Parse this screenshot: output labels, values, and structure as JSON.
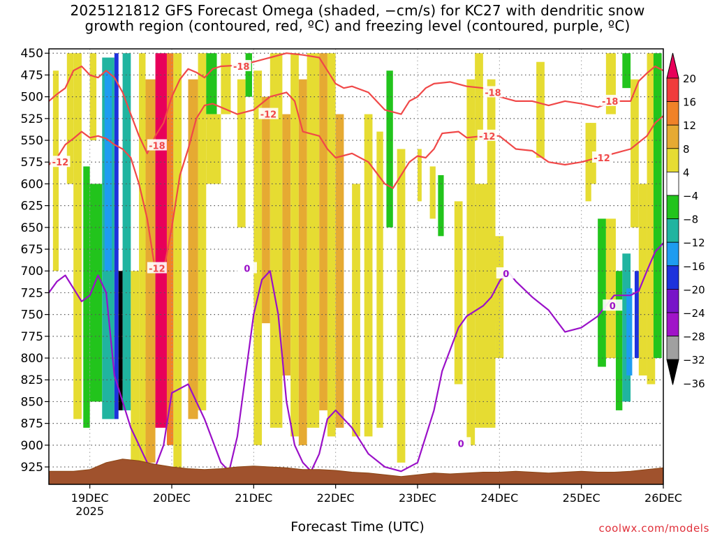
{
  "chart_data": {
    "type": "heatmap",
    "title_line1": "2025121812 GFS Forecast Omega (shaded, −cm/s) for KC27 with dendritic snow",
    "title_line2": "growth region (contoured, red, ºC) and freezing level (contoured, purple, ºC)",
    "xlabel": "Forecast Time (UTC)",
    "credit": "coolwx.com/models",
    "x_start_day": 18.5,
    "x_end_day": 26,
    "x_ticks": [
      {
        "day": 19,
        "label": "19DEC",
        "sub": "2025"
      },
      {
        "day": 20,
        "label": "20DEC",
        "sub": ""
      },
      {
        "day": 21,
        "label": "21DEC",
        "sub": ""
      },
      {
        "day": 22,
        "label": "22DEC",
        "sub": ""
      },
      {
        "day": 23,
        "label": "23DEC",
        "sub": ""
      },
      {
        "day": 24,
        "label": "24DEC",
        "sub": ""
      },
      {
        "day": 25,
        "label": "25DEC",
        "sub": ""
      },
      {
        "day": 26,
        "label": "26DEC",
        "sub": ""
      }
    ],
    "y_ticks": [
      450,
      475,
      500,
      525,
      550,
      575,
      600,
      625,
      650,
      675,
      700,
      725,
      750,
      775,
      800,
      825,
      850,
      875,
      900,
      925
    ],
    "ylim_hPa": [
      445,
      945
    ],
    "colorbar": {
      "labels": [
        "20",
        "16",
        "12",
        "8",
        "4",
        "−4",
        "−8",
        "−12",
        "−16",
        "−20",
        "−24",
        "−28",
        "−32",
        "−36"
      ],
      "colors": [
        "#e8005a",
        "#f03c3c",
        "#f08228",
        "#e6aa32",
        "#e6dc32",
        "#ffffff",
        "#22c41c",
        "#20b4a0",
        "#1e9cf0",
        "#1e32dc",
        "#7814c8",
        "#a014c8",
        "#a0a0a0",
        "#000000"
      ]
    },
    "contour_labels": {
      "dgz_m18": "-18",
      "dgz_m12": "-12",
      "freezing": "0"
    },
    "dgz_minus18_line": [
      [
        18.5,
        505
      ],
      [
        18.6,
        497
      ],
      [
        18.7,
        490
      ],
      [
        18.8,
        470
      ],
      [
        18.9,
        465
      ],
      [
        19.0,
        475
      ],
      [
        19.1,
        478
      ],
      [
        19.2,
        470
      ],
      [
        19.3,
        478
      ],
      [
        19.4,
        495
      ],
      [
        19.5,
        520
      ],
      [
        19.6,
        545
      ],
      [
        19.7,
        565
      ],
      [
        19.8,
        545
      ],
      [
        19.9,
        530
      ],
      [
        20.0,
        500
      ],
      [
        20.1,
        480
      ],
      [
        20.2,
        468
      ],
      [
        20.3,
        472
      ],
      [
        20.4,
        478
      ],
      [
        20.5,
        468
      ],
      [
        20.6,
        465
      ],
      [
        20.8,
        464
      ],
      [
        21.0,
        460
      ],
      [
        21.2,
        455
      ],
      [
        21.4,
        450
      ],
      [
        21.6,
        452
      ],
      [
        21.8,
        455
      ],
      [
        21.9,
        470
      ],
      [
        22.0,
        485
      ],
      [
        22.1,
        490
      ],
      [
        22.2,
        488
      ],
      [
        22.4,
        495
      ],
      [
        22.6,
        515
      ],
      [
        22.8,
        520
      ],
      [
        22.9,
        505
      ],
      [
        23.0,
        500
      ],
      [
        23.1,
        490
      ],
      [
        23.2,
        485
      ],
      [
        23.4,
        483
      ],
      [
        23.6,
        488
      ],
      [
        23.8,
        490
      ],
      [
        23.9,
        493
      ],
      [
        24.0,
        500
      ],
      [
        24.2,
        505
      ],
      [
        24.4,
        505
      ],
      [
        24.6,
        510
      ],
      [
        24.8,
        505
      ],
      [
        25.0,
        508
      ],
      [
        25.2,
        512
      ],
      [
        25.4,
        505
      ],
      [
        25.6,
        505
      ],
      [
        25.7,
        482
      ],
      [
        25.8,
        473
      ],
      [
        25.9,
        465
      ],
      [
        26.0,
        470
      ]
    ],
    "dgz_minus12_line": [
      [
        18.5,
        578
      ],
      [
        18.6,
        570
      ],
      [
        18.7,
        555
      ],
      [
        18.8,
        548
      ],
      [
        18.9,
        540
      ],
      [
        19.0,
        547
      ],
      [
        19.1,
        545
      ],
      [
        19.2,
        548
      ],
      [
        19.3,
        555
      ],
      [
        19.4,
        560
      ],
      [
        19.5,
        570
      ],
      [
        19.6,
        600
      ],
      [
        19.7,
        640
      ],
      [
        19.8,
        700
      ],
      [
        19.9,
        700
      ],
      [
        20.0,
        650
      ],
      [
        20.1,
        590
      ],
      [
        20.2,
        560
      ],
      [
        20.3,
        525
      ],
      [
        20.4,
        510
      ],
      [
        20.5,
        508
      ],
      [
        20.6,
        512
      ],
      [
        20.8,
        520
      ],
      [
        21.0,
        515
      ],
      [
        21.2,
        500
      ],
      [
        21.4,
        495
      ],
      [
        21.5,
        505
      ],
      [
        21.6,
        540
      ],
      [
        21.8,
        545
      ],
      [
        21.9,
        560
      ],
      [
        22.0,
        570
      ],
      [
        22.2,
        565
      ],
      [
        22.4,
        575
      ],
      [
        22.6,
        600
      ],
      [
        22.7,
        605
      ],
      [
        22.8,
        590
      ],
      [
        22.9,
        575
      ],
      [
        23.0,
        568
      ],
      [
        23.1,
        570
      ],
      [
        23.2,
        560
      ],
      [
        23.3,
        542
      ],
      [
        23.5,
        540
      ],
      [
        23.6,
        547
      ],
      [
        23.8,
        545
      ],
      [
        24.0,
        545
      ],
      [
        24.2,
        560
      ],
      [
        24.4,
        562
      ],
      [
        24.6,
        575
      ],
      [
        24.8,
        578
      ],
      [
        25.0,
        575
      ],
      [
        25.2,
        570
      ],
      [
        25.4,
        565
      ],
      [
        25.6,
        560
      ],
      [
        25.8,
        545
      ],
      [
        25.9,
        530
      ],
      [
        26.0,
        522
      ]
    ],
    "freezing_line": [
      [
        18.5,
        725
      ],
      [
        18.6,
        712
      ],
      [
        18.7,
        705
      ],
      [
        18.8,
        720
      ],
      [
        18.9,
        735
      ],
      [
        19.0,
        728
      ],
      [
        19.1,
        705
      ],
      [
        19.2,
        725
      ],
      [
        19.3,
        820
      ],
      [
        19.4,
        850
      ],
      [
        19.5,
        880
      ],
      [
        19.6,
        900
      ],
      [
        19.7,
        920
      ],
      [
        19.8,
        925
      ],
      [
        19.9,
        900
      ],
      [
        20.0,
        840
      ],
      [
        20.2,
        830
      ],
      [
        20.4,
        870
      ],
      [
        20.6,
        920
      ],
      [
        20.7,
        930
      ],
      [
        20.8,
        890
      ],
      [
        20.9,
        820
      ],
      [
        21.0,
        750
      ],
      [
        21.1,
        710
      ],
      [
        21.2,
        700
      ],
      [
        21.3,
        750
      ],
      [
        21.4,
        850
      ],
      [
        21.5,
        900
      ],
      [
        21.6,
        920
      ],
      [
        21.7,
        930
      ],
      [
        21.8,
        910
      ],
      [
        21.9,
        870
      ],
      [
        22.0,
        860
      ],
      [
        22.2,
        880
      ],
      [
        22.4,
        910
      ],
      [
        22.6,
        925
      ],
      [
        22.8,
        930
      ],
      [
        23.0,
        920
      ],
      [
        23.2,
        860
      ],
      [
        23.3,
        815
      ],
      [
        23.4,
        790
      ],
      [
        23.5,
        765
      ],
      [
        23.6,
        752
      ],
      [
        23.8,
        740
      ],
      [
        23.9,
        730
      ],
      [
        24.0,
        712
      ],
      [
        24.1,
        700
      ],
      [
        24.2,
        712
      ],
      [
        24.4,
        730
      ],
      [
        24.6,
        745
      ],
      [
        24.8,
        770
      ],
      [
        25.0,
        765
      ],
      [
        25.2,
        752
      ],
      [
        25.4,
        728
      ],
      [
        25.6,
        728
      ],
      [
        25.7,
        723
      ],
      [
        25.8,
        700
      ],
      [
        25.9,
        678
      ],
      [
        26.0,
        668
      ]
    ],
    "omega_bands": [
      {
        "x0": 18.55,
        "x1": 18.62,
        "p0": 470,
        "p1": 700,
        "v": 4
      },
      {
        "x0": 18.72,
        "x1": 18.8,
        "p0": 450,
        "p1": 600,
        "v": 4
      },
      {
        "x0": 18.8,
        "x1": 18.9,
        "p0": 450,
        "p1": 870,
        "v": 4
      },
      {
        "x0": 18.92,
        "x1": 19.0,
        "p0": 580,
        "p1": 880,
        "v": -6
      },
      {
        "x0": 19.0,
        "x1": 19.08,
        "p0": 450,
        "p1": 550,
        "v": 4
      },
      {
        "x0": 19.0,
        "x1": 19.15,
        "p0": 600,
        "p1": 850,
        "v": -6
      },
      {
        "x0": 19.15,
        "x1": 19.3,
        "p0": 455,
        "p1": 870,
        "v": -10
      },
      {
        "x0": 19.18,
        "x1": 19.27,
        "p0": 470,
        "p1": 700,
        "v": -14
      },
      {
        "x0": 19.3,
        "x1": 19.35,
        "p0": 450,
        "p1": 870,
        "v": -18
      },
      {
        "x0": 19.35,
        "x1": 19.4,
        "p0": 700,
        "p1": 860,
        "v": -40
      },
      {
        "x0": 19.4,
        "x1": 19.5,
        "p0": 450,
        "p1": 860,
        "v": -10
      },
      {
        "x0": 19.5,
        "x1": 19.6,
        "p0": 700,
        "p1": 930,
        "v": 4
      },
      {
        "x0": 19.6,
        "x1": 19.68,
        "p0": 450,
        "p1": 920,
        "v": 6
      },
      {
        "x0": 19.68,
        "x1": 19.8,
        "p0": 480,
        "p1": 920,
        "v": 10
      },
      {
        "x0": 19.8,
        "x1": 19.94,
        "p0": 450,
        "p1": 880,
        "v": 24
      },
      {
        "x0": 19.94,
        "x1": 20.02,
        "p0": 450,
        "p1": 900,
        "v": 14
      },
      {
        "x0": 20.02,
        "x1": 20.12,
        "p0": 450,
        "p1": 930,
        "v": 4
      },
      {
        "x0": 20.2,
        "x1": 20.32,
        "p0": 480,
        "p1": 870,
        "v": 10
      },
      {
        "x0": 20.32,
        "x1": 20.42,
        "p0": 450,
        "p1": 860,
        "v": 4
      },
      {
        "x0": 20.42,
        "x1": 20.55,
        "p0": 450,
        "p1": 520,
        "v": -6
      },
      {
        "x0": 20.42,
        "x1": 20.6,
        "p0": 520,
        "p1": 600,
        "v": 4
      },
      {
        "x0": 20.6,
        "x1": 20.72,
        "p0": 450,
        "p1": 520,
        "v": 6
      },
      {
        "x0": 20.8,
        "x1": 20.9,
        "p0": 480,
        "p1": 650,
        "v": 4
      },
      {
        "x0": 20.9,
        "x1": 20.98,
        "p0": 450,
        "p1": 500,
        "v": -6
      },
      {
        "x0": 21.0,
        "x1": 21.1,
        "p0": 470,
        "p1": 900,
        "v": 6
      },
      {
        "x0": 21.1,
        "x1": 21.2,
        "p0": 500,
        "p1": 760,
        "v": 10
      },
      {
        "x0": 21.2,
        "x1": 21.35,
        "p0": 450,
        "p1": 880,
        "v": 6
      },
      {
        "x0": 21.35,
        "x1": 21.45,
        "p0": 520,
        "p1": 820,
        "v": 10
      },
      {
        "x0": 21.45,
        "x1": 21.55,
        "p0": 450,
        "p1": 890,
        "v": 4
      },
      {
        "x0": 21.55,
        "x1": 21.65,
        "p0": 480,
        "p1": 900,
        "v": 10
      },
      {
        "x0": 21.65,
        "x1": 21.8,
        "p0": 450,
        "p1": 880,
        "v": 6
      },
      {
        "x0": 21.8,
        "x1": 21.9,
        "p0": 450,
        "p1": 860,
        "v": 10
      },
      {
        "x0": 21.9,
        "x1": 22.0,
        "p0": 450,
        "p1": 890,
        "v": 6
      },
      {
        "x0": 22.0,
        "x1": 22.1,
        "p0": 520,
        "p1": 880,
        "v": 10
      },
      {
        "x0": 22.2,
        "x1": 22.3,
        "p0": 600,
        "p1": 890,
        "v": 4
      },
      {
        "x0": 22.35,
        "x1": 22.45,
        "p0": 520,
        "p1": 890,
        "v": 6
      },
      {
        "x0": 22.5,
        "x1": 22.58,
        "p0": 540,
        "p1": 880,
        "v": 4
      },
      {
        "x0": 22.62,
        "x1": 22.7,
        "p0": 470,
        "p1": 650,
        "v": -6
      },
      {
        "x0": 22.75,
        "x1": 22.85,
        "p0": 560,
        "p1": 920,
        "v": 4
      },
      {
        "x0": 23.0,
        "x1": 23.05,
        "p0": 560,
        "p1": 620,
        "v": 4
      },
      {
        "x0": 23.15,
        "x1": 23.22,
        "p0": 580,
        "p1": 640,
        "v": 4
      },
      {
        "x0": 23.25,
        "x1": 23.32,
        "p0": 590,
        "p1": 660,
        "v": -6
      },
      {
        "x0": 23.45,
        "x1": 23.55,
        "p0": 620,
        "p1": 830,
        "v": 4
      },
      {
        "x0": 23.6,
        "x1": 23.7,
        "p0": 480,
        "p1": 900,
        "v": 4
      },
      {
        "x0": 23.7,
        "x1": 23.8,
        "p0": 450,
        "p1": 550,
        "v": 6
      },
      {
        "x0": 23.7,
        "x1": 23.95,
        "p0": 600,
        "p1": 880,
        "v": 4
      },
      {
        "x0": 23.85,
        "x1": 23.95,
        "p0": 480,
        "p1": 760,
        "v": 6
      },
      {
        "x0": 23.95,
        "x1": 24.05,
        "p0": 660,
        "p1": 800,
        "v": 4
      },
      {
        "x0": 24.45,
        "x1": 24.55,
        "p0": 460,
        "p1": 570,
        "v": 4
      },
      {
        "x0": 25.05,
        "x1": 25.12,
        "p0": 530,
        "p1": 620,
        "v": 4
      },
      {
        "x0": 25.1,
        "x1": 25.18,
        "p0": 530,
        "p1": 600,
        "v": 4
      },
      {
        "x0": 25.3,
        "x1": 25.42,
        "p0": 450,
        "p1": 520,
        "v": 4
      },
      {
        "x0": 25.5,
        "x1": 25.6,
        "p0": 450,
        "p1": 490,
        "v": -6
      },
      {
        "x0": 25.2,
        "x1": 25.3,
        "p0": 640,
        "p1": 810,
        "v": -6
      },
      {
        "x0": 25.3,
        "x1": 25.42,
        "p0": 640,
        "p1": 800,
        "v": 4
      },
      {
        "x0": 25.42,
        "x1": 25.5,
        "p0": 700,
        "p1": 860,
        "v": -6
      },
      {
        "x0": 25.5,
        "x1": 25.6,
        "p0": 680,
        "p1": 850,
        "v": -10
      },
      {
        "x0": 25.55,
        "x1": 25.62,
        "p0": 720,
        "p1": 820,
        "v": -14
      },
      {
        "x0": 25.6,
        "x1": 25.7,
        "p0": 480,
        "p1": 650,
        "v": 4
      },
      {
        "x0": 25.65,
        "x1": 25.72,
        "p0": 700,
        "p1": 800,
        "v": -18
      },
      {
        "x0": 25.7,
        "x1": 25.8,
        "p0": 600,
        "p1": 820,
        "v": 4
      },
      {
        "x0": 25.8,
        "x1": 25.9,
        "p0": 450,
        "p1": 830,
        "v": 4
      },
      {
        "x0": 25.88,
        "x1": 25.98,
        "p0": 450,
        "p1": 800,
        "v": -6
      }
    ],
    "terrain_profile": [
      [
        18.5,
        930
      ],
      [
        18.8,
        930
      ],
      [
        19.0,
        928
      ],
      [
        19.2,
        920
      ],
      [
        19.4,
        916
      ],
      [
        19.6,
        918
      ],
      [
        19.8,
        922
      ],
      [
        20.0,
        925
      ],
      [
        20.2,
        927
      ],
      [
        20.4,
        928
      ],
      [
        20.6,
        927
      ],
      [
        20.8,
        925
      ],
      [
        21.0,
        924
      ],
      [
        21.2,
        925
      ],
      [
        21.4,
        926
      ],
      [
        21.6,
        928
      ],
      [
        21.8,
        928
      ],
      [
        22.0,
        929
      ],
      [
        22.2,
        931
      ],
      [
        22.4,
        932
      ],
      [
        22.6,
        934
      ],
      [
        22.8,
        936
      ],
      [
        23.0,
        934
      ],
      [
        23.2,
        932
      ],
      [
        23.4,
        933
      ],
      [
        23.6,
        932
      ],
      [
        23.8,
        931
      ],
      [
        24.0,
        931
      ],
      [
        24.2,
        930
      ],
      [
        24.4,
        931
      ],
      [
        24.6,
        932
      ],
      [
        24.8,
        931
      ],
      [
        25.0,
        930
      ],
      [
        25.2,
        931
      ],
      [
        25.4,
        931
      ],
      [
        25.6,
        930
      ],
      [
        25.8,
        928
      ],
      [
        26.0,
        926
      ]
    ]
  }
}
